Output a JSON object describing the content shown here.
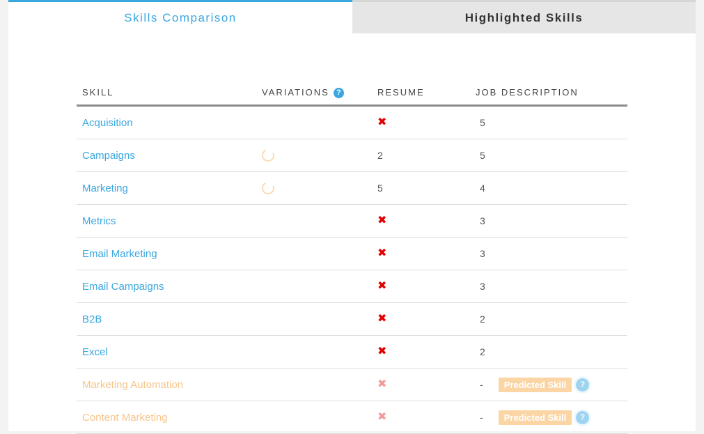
{
  "tabs": [
    {
      "label": "Skills Comparison",
      "active": true
    },
    {
      "label": "Highlighted Skills",
      "active": false
    }
  ],
  "table": {
    "headers": {
      "skill": "SKILL",
      "variations": "VARIATIONS",
      "resume": "RESUME",
      "job_description": "JOB DESCRIPTION"
    },
    "help_glyph": "?",
    "missing_glyph": "✖",
    "rows": [
      {
        "skill": "Acquisition",
        "variations": "",
        "resume": "✖",
        "job": "5",
        "predicted": false
      },
      {
        "skill": "Campaigns",
        "variations": "spinner",
        "resume": "2",
        "job": "5",
        "predicted": false
      },
      {
        "skill": "Marketing",
        "variations": "spinner",
        "resume": "5",
        "job": "4",
        "predicted": false
      },
      {
        "skill": "Metrics",
        "variations": "",
        "resume": "✖",
        "job": "3",
        "predicted": false
      },
      {
        "skill": "Email Marketing",
        "variations": "",
        "resume": "✖",
        "job": "3",
        "predicted": false
      },
      {
        "skill": "Email Campaigns",
        "variations": "",
        "resume": "✖",
        "job": "3",
        "predicted": false
      },
      {
        "skill": "B2B",
        "variations": "",
        "resume": "✖",
        "job": "2",
        "predicted": false
      },
      {
        "skill": "Excel",
        "variations": "",
        "resume": "✖",
        "job": "2",
        "predicted": false
      },
      {
        "skill": "Marketing Automation",
        "variations": "",
        "resume": "✖",
        "job": "-",
        "predicted": true,
        "badge": "Predicted Skill"
      },
      {
        "skill": "Content Marketing",
        "variations": "",
        "resume": "✖",
        "job": "-",
        "predicted": true,
        "badge": "Predicted Skill"
      }
    ]
  },
  "colors": {
    "accent": "#3aa7e0",
    "missing": "#e00000",
    "predicted_text": "#f8c58a",
    "predicted_badge": "#fbd5a4"
  }
}
